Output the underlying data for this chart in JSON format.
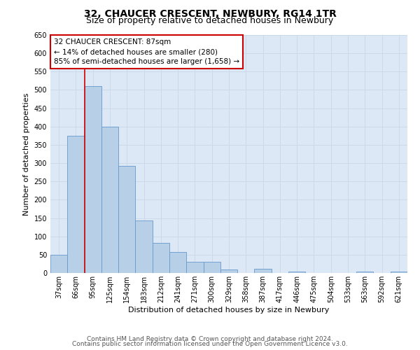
{
  "title": "32, CHAUCER CRESCENT, NEWBURY, RG14 1TR",
  "subtitle": "Size of property relative to detached houses in Newbury",
  "xlabel": "Distribution of detached houses by size in Newbury",
  "ylabel": "Number of detached properties",
  "categories": [
    "37sqm",
    "66sqm",
    "95sqm",
    "125sqm",
    "154sqm",
    "183sqm",
    "212sqm",
    "241sqm",
    "271sqm",
    "300sqm",
    "329sqm",
    "358sqm",
    "387sqm",
    "417sqm",
    "446sqm",
    "475sqm",
    "504sqm",
    "533sqm",
    "563sqm",
    "592sqm",
    "621sqm"
  ],
  "values": [
    50,
    375,
    510,
    400,
    293,
    143,
    82,
    57,
    30,
    30,
    9,
    0,
    12,
    0,
    4,
    0,
    0,
    0,
    3,
    0,
    4
  ],
  "bar_color": "#b8cfe8",
  "bar_edge_color": "#6699cc",
  "annotation_text": "32 CHAUCER CRESCENT: 87sqm\n← 14% of detached houses are smaller (280)\n85% of semi-detached houses are larger (1,658) →",
  "annotation_box_color": "#ffffff",
  "annotation_box_edge_color": "#cc0000",
  "vline_color": "#cc0000",
  "ylim": [
    0,
    650
  ],
  "yticks": [
    0,
    50,
    100,
    150,
    200,
    250,
    300,
    350,
    400,
    450,
    500,
    550,
    600,
    650
  ],
  "grid_color": "#ccd9e8",
  "background_color": "#dce8f5",
  "footer_line1": "Contains HM Land Registry data © Crown copyright and database right 2024.",
  "footer_line2": "Contains public sector information licensed under the Open Government Licence v3.0.",
  "title_fontsize": 10,
  "subtitle_fontsize": 9,
  "axis_label_fontsize": 8,
  "tick_fontsize": 7,
  "annotation_fontsize": 7.5,
  "footer_fontsize": 6.5
}
